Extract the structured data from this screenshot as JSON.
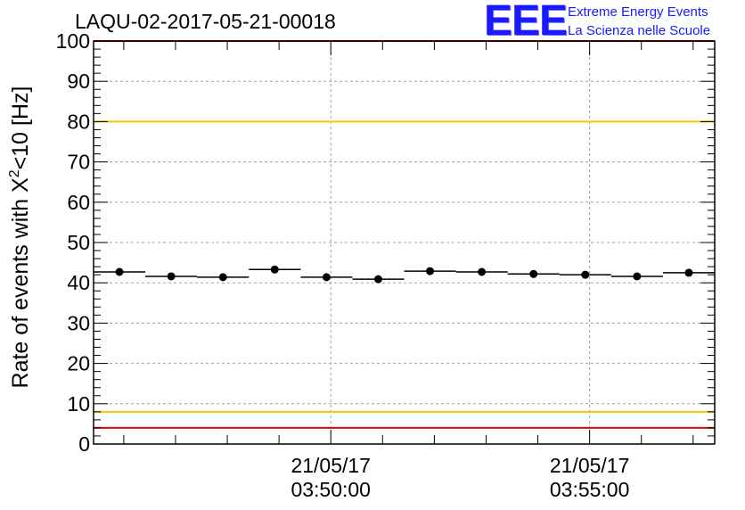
{
  "title": "LAQU-02-2017-05-21-00018",
  "logo": {
    "mark": "EEE",
    "line1": "Extreme Energy Events",
    "line2": "La Scienza nelle Scuole",
    "color": "#1a1aff"
  },
  "chart_data": {
    "type": "scatter",
    "title": "LAQU-02-2017-05-21-00018",
    "ylabel_main": "Rate of events with X",
    "ylabel_sup": "2",
    "ylabel_tail": "<10 [Hz]",
    "xlabel": "",
    "ylim": [
      0,
      100
    ],
    "yticks": [
      0,
      10,
      20,
      30,
      40,
      50,
      60,
      70,
      80,
      90,
      100
    ],
    "xlim": [
      "03:45:25",
      "03:57:25"
    ],
    "xticks": [
      {
        "x": "03:50:00",
        "line1": "21/05/17",
        "line2": "03:50:00"
      },
      {
        "x": "03:55:00",
        "line1": "21/05/17",
        "line2": "03:55:00"
      }
    ],
    "grid": true,
    "bin_width_seconds": 60,
    "series": [
      {
        "x": [
          "03:45:55",
          "03:46:55",
          "03:47:55",
          "03:48:55",
          "03:49:55",
          "03:50:55",
          "03:51:55",
          "03:52:55",
          "03:53:55",
          "03:54:55",
          "03:55:55",
          "03:56:55"
        ],
        "y": [
          42.7,
          41.6,
          41.4,
          43.3,
          41.4,
          40.9,
          42.9,
          42.7,
          42.2,
          42.0,
          41.6,
          42.5
        ],
        "color": "#000000"
      }
    ],
    "reference_lines": [
      {
        "y": 80,
        "color": "#f0c800"
      },
      {
        "y": 8,
        "color": "#f0c800"
      },
      {
        "y": 100,
        "color": "#e60000"
      },
      {
        "y": 4,
        "color": "#e60000"
      }
    ]
  }
}
